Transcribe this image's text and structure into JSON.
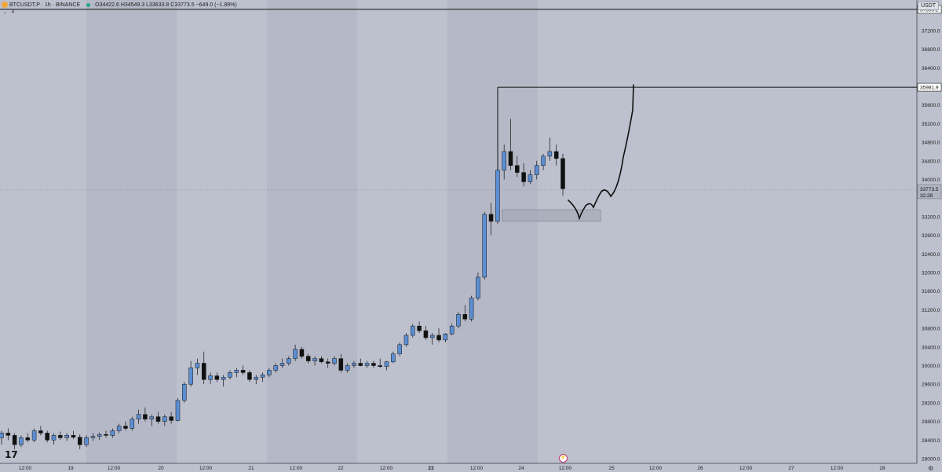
{
  "header": {
    "symbol": "BTCUSDT.P · 1h · BINANCE",
    "ohlc": "O34422.6 H34549.3 L33633.8 C33773.5 −649.0 (−1.89%)",
    "indicator_toggle": "⌄",
    "indicator_count": "4"
  },
  "currency_badge": "USDT",
  "price_axis": {
    "ticks": [
      "37200.0",
      "36800.0",
      "36400.0",
      "36000.0",
      "35600.0",
      "35200.0",
      "34800.0",
      "34400.0",
      "34000.0",
      "33200.0",
      "32800.0",
      "32400.0",
      "32000.0",
      "31600.0",
      "31200.0",
      "30800.0",
      "30400.0",
      "30000.0",
      "29600.0",
      "29200.0",
      "28800.0",
      "28400.0",
      "28000.0"
    ],
    "level_labels": [
      {
        "text": "37655.2"
      },
      {
        "text": "35981.9"
      }
    ],
    "current_price": "33773.5",
    "countdown": "32:28"
  },
  "time_axis": {
    "labels": [
      "12:00",
      "19",
      "12:00",
      "20",
      "12:00",
      "21",
      "12:00",
      "22",
      "12:00",
      "23",
      "12:00",
      "24",
      "12:00",
      "25",
      "12:00",
      "26",
      "12:00",
      "27",
      "12:00",
      "28"
    ]
  },
  "colors": {
    "background": "#bdc0cd",
    "weekend_band": "#b5b8c6",
    "bull": "#5b8fd4",
    "bear": "#111111",
    "drawing": "#111111",
    "zone_fill": "#a7aab8",
    "axis_bg": "#bdc0cd"
  },
  "icons": {
    "tv_logo": "tradingview-logo-icon",
    "event": "lightning-event-icon",
    "settings": "gear-icon"
  },
  "chart_data": {
    "type": "candlestick",
    "title": "",
    "ylim": [
      27800,
      38000
    ],
    "current_price": 33773.5,
    "horizontal_levels": [
      37655.2,
      35981.9
    ],
    "zone": {
      "from": 33100,
      "to": 33350
    },
    "candles": [
      [
        28450,
        28600,
        28300,
        28550
      ],
      [
        28550,
        28650,
        28400,
        28500
      ],
      [
        28500,
        28550,
        28200,
        28300
      ],
      [
        28300,
        28500,
        28250,
        28450
      ],
      [
        28450,
        28550,
        28350,
        28400
      ],
      [
        28400,
        28650,
        28350,
        28600
      ],
      [
        28600,
        28700,
        28500,
        28550
      ],
      [
        28550,
        28600,
        28350,
        28400
      ],
      [
        28400,
        28550,
        28300,
        28500
      ],
      [
        28500,
        28580,
        28400,
        28450
      ],
      [
        28450,
        28550,
        28380,
        28500
      ],
      [
        28500,
        28600,
        28420,
        28460
      ],
      [
        28460,
        28520,
        28200,
        28300
      ],
      [
        28300,
        28500,
        28250,
        28450
      ],
      [
        28450,
        28550,
        28380,
        28480
      ],
      [
        28480,
        28560,
        28400,
        28520
      ],
      [
        28520,
        28600,
        28450,
        28500
      ],
      [
        28500,
        28650,
        28450,
        28600
      ],
      [
        28600,
        28750,
        28550,
        28700
      ],
      [
        28700,
        28800,
        28600,
        28650
      ],
      [
        28650,
        28900,
        28600,
        28850
      ],
      [
        28850,
        29050,
        28750,
        28950
      ],
      [
        28950,
        29100,
        28800,
        28850
      ],
      [
        28850,
        28950,
        28700,
        28900
      ],
      [
        28900,
        29000,
        28750,
        28800
      ],
      [
        28800,
        28950,
        28700,
        28900
      ],
      [
        28900,
        29000,
        28750,
        28820
      ],
      [
        28820,
        29300,
        28800,
        29250
      ],
      [
        29250,
        29650,
        29200,
        29600
      ],
      [
        29600,
        30100,
        29550,
        29950
      ],
      [
        29950,
        30150,
        29800,
        30050
      ],
      [
        30050,
        30300,
        29600,
        29700
      ],
      [
        29700,
        29850,
        29600,
        29780
      ],
      [
        29780,
        29850,
        29650,
        29700
      ],
      [
        29700,
        29800,
        29550,
        29750
      ],
      [
        29750,
        29900,
        29700,
        29850
      ],
      [
        29850,
        29950,
        29750,
        29900
      ],
      [
        29900,
        30000,
        29800,
        29850
      ],
      [
        29850,
        29900,
        29650,
        29700
      ],
      [
        29700,
        29800,
        29600,
        29750
      ],
      [
        29750,
        29850,
        29650,
        29800
      ],
      [
        29800,
        29950,
        29750,
        29900
      ],
      [
        29900,
        30050,
        29850,
        30000
      ],
      [
        30000,
        30150,
        29950,
        30050
      ],
      [
        30050,
        30200,
        30000,
        30150
      ],
      [
        30150,
        30450,
        30100,
        30350
      ],
      [
        30350,
        30400,
        30150,
        30200
      ],
      [
        30200,
        30250,
        30050,
        30100
      ],
      [
        30100,
        30200,
        30000,
        30150
      ],
      [
        30150,
        30200,
        30050,
        30080
      ],
      [
        30080,
        30150,
        29950,
        30050
      ],
      [
        30050,
        30200,
        30000,
        30150
      ],
      [
        30150,
        30250,
        29850,
        29900
      ],
      [
        29900,
        30050,
        29850,
        30000
      ],
      [
        30000,
        30100,
        29950,
        30050
      ],
      [
        30050,
        30150,
        29980,
        30000
      ],
      [
        30000,
        30100,
        29950,
        30050
      ],
      [
        30050,
        30100,
        29950,
        30000
      ],
      [
        30000,
        30150,
        29950,
        29980
      ],
      [
        29980,
        30100,
        29900,
        30080
      ],
      [
        30080,
        30300,
        30050,
        30250
      ],
      [
        30250,
        30500,
        30200,
        30450
      ],
      [
        30450,
        30700,
        30400,
        30650
      ],
      [
        30650,
        30900,
        30600,
        30850
      ],
      [
        30850,
        30950,
        30700,
        30750
      ],
      [
        30750,
        30850,
        30550,
        30600
      ],
      [
        30600,
        30700,
        30450,
        30650
      ],
      [
        30650,
        30800,
        30500,
        30550
      ],
      [
        30550,
        30700,
        30500,
        30680
      ],
      [
        30680,
        30900,
        30650,
        30850
      ],
      [
        30850,
        31150,
        30800,
        31100
      ],
      [
        31100,
        31300,
        30950,
        31000
      ],
      [
        31000,
        31500,
        30950,
        31450
      ],
      [
        31450,
        32000,
        31400,
        31900
      ],
      [
        31900,
        33300,
        31850,
        33250
      ],
      [
        33250,
        33500,
        32800,
        33100
      ],
      [
        33100,
        34300,
        33050,
        34200
      ],
      [
        34200,
        34750,
        34000,
        34600
      ],
      [
        34600,
        35300,
        34200,
        34300
      ],
      [
        34300,
        34500,
        34050,
        34150
      ],
      [
        34150,
        34350,
        33850,
        33950
      ],
      [
        33950,
        34200,
        33900,
        34100
      ],
      [
        34100,
        34400,
        34000,
        34300
      ],
      [
        34300,
        34550,
        34200,
        34500
      ],
      [
        34500,
        34900,
        34400,
        34600
      ],
      [
        34600,
        34750,
        34300,
        34450
      ],
      [
        34450,
        34550,
        33650,
        33800
      ]
    ]
  }
}
